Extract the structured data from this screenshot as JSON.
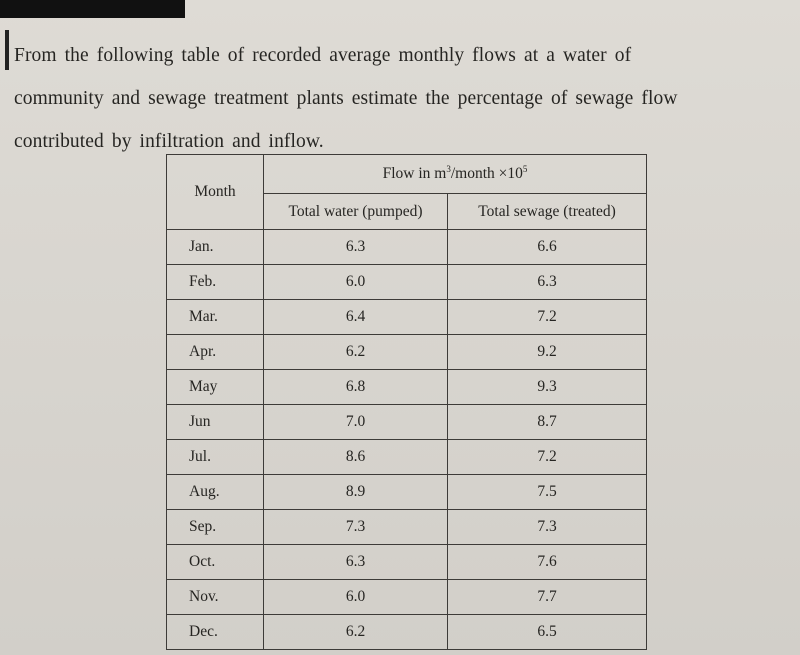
{
  "intro_lines": [
    "From the following table of recorded average monthly flows at a water of",
    "community and sewage treatment plants estimate the percentage of sewage flow",
    "contributed by infiltration and inflow."
  ],
  "table": {
    "month_header": "Month",
    "flow_header_prefix": "Flow in m",
    "flow_header_exp1": "3",
    "flow_header_mid": "/month ×10",
    "flow_header_exp2": "5",
    "col_water": "Total water (pumped)",
    "col_sewage": "Total sewage (treated)",
    "rows": [
      {
        "month": "Jan.",
        "water": "6.3",
        "sewage": "6.6"
      },
      {
        "month": "Feb.",
        "water": "6.0",
        "sewage": "6.3"
      },
      {
        "month": "Mar.",
        "water": "6.4",
        "sewage": "7.2"
      },
      {
        "month": "Apr.",
        "water": "6.2",
        "sewage": "9.2"
      },
      {
        "month": "May",
        "water": "6.8",
        "sewage": "9.3"
      },
      {
        "month": "Jun",
        "water": "7.0",
        "sewage": "8.7"
      },
      {
        "month": "Jul.",
        "water": "8.6",
        "sewage": "7.2"
      },
      {
        "month": "Aug.",
        "water": "8.9",
        "sewage": "7.5"
      },
      {
        "month": "Sep.",
        "water": "7.3",
        "sewage": "7.3"
      },
      {
        "month": "Oct.",
        "water": "6.3",
        "sewage": "7.6"
      },
      {
        "month": "Nov.",
        "water": "6.0",
        "sewage": "7.7"
      },
      {
        "month": "Dec.",
        "water": "6.2",
        "sewage": "6.5"
      }
    ]
  }
}
